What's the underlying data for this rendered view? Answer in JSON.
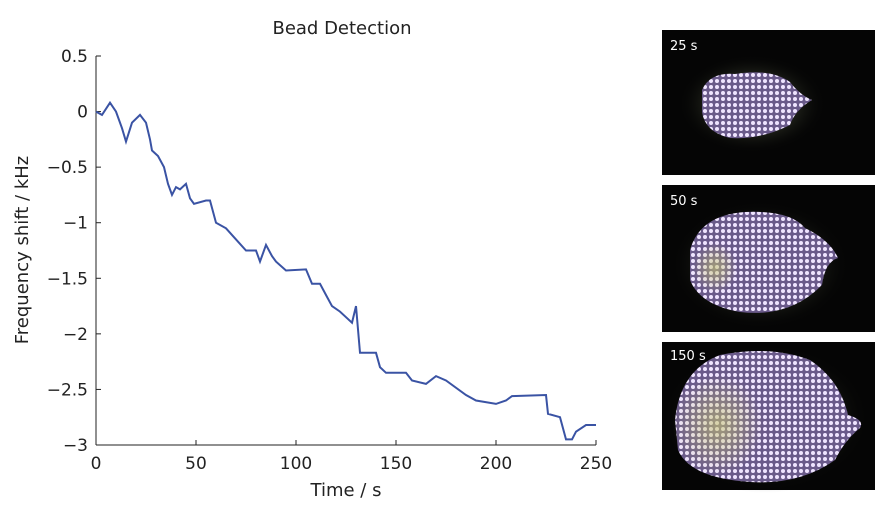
{
  "chart_data": {
    "type": "line",
    "title": "Bead Detection",
    "xlabel": "Time / s",
    "ylabel": "Frequency shift  / kHz",
    "color": "#3a53a4",
    "x": [
      0,
      3,
      7,
      10,
      13,
      15,
      18,
      22,
      25,
      27,
      28,
      31,
      34,
      36,
      38,
      40,
      42,
      45,
      47,
      49,
      55,
      57,
      60,
      65,
      70,
      75,
      80,
      82,
      85,
      88,
      90,
      95,
      105,
      108,
      112,
      115,
      118,
      122,
      125,
      128,
      130,
      132,
      140,
      142,
      145,
      155,
      158,
      165,
      170,
      175,
      185,
      190,
      200,
      205,
      208,
      225,
      226,
      232,
      235,
      238,
      240,
      245,
      250
    ],
    "values": [
      0,
      -0.03,
      0.08,
      0,
      -0.15,
      -0.27,
      -0.1,
      -0.03,
      -0.1,
      -0.25,
      -0.35,
      -0.4,
      -0.5,
      -0.65,
      -0.75,
      -0.68,
      -0.7,
      -0.65,
      -0.78,
      -0.83,
      -0.8,
      -0.8,
      -1.0,
      -1.05,
      -1.15,
      -1.25,
      -1.25,
      -1.35,
      -1.2,
      -1.3,
      -1.35,
      -1.43,
      -1.42,
      -1.55,
      -1.55,
      -1.65,
      -1.75,
      -1.8,
      -1.85,
      -1.9,
      -1.75,
      -2.17,
      -2.17,
      -2.3,
      -2.35,
      -2.35,
      -2.42,
      -2.45,
      -2.38,
      -2.42,
      -2.55,
      -2.6,
      -2.63,
      -2.6,
      -2.56,
      -2.55,
      -2.72,
      -2.75,
      -2.95,
      -2.95,
      -2.88,
      -2.82,
      -2.82
    ],
    "xlim": [
      0,
      250
    ],
    "ylim": [
      -3,
      0.5
    ],
    "xticks": [
      0,
      50,
      100,
      150,
      200,
      250
    ],
    "yticks": [
      0.5,
      0,
      {
        "value": -0.5,
        "label": "−0.5"
      },
      {
        "value": -1,
        "label": "−1"
      },
      {
        "value": -1.5,
        "label": "−1.5"
      },
      {
        "value": -2,
        "label": "−2"
      },
      {
        "value": -2.5,
        "label": "−2.5"
      },
      {
        "value": -3,
        "label": "−3"
      }
    ]
  },
  "panels": [
    {
      "label": "25 s"
    },
    {
      "label": "50 s"
    },
    {
      "label": "150 s"
    }
  ]
}
